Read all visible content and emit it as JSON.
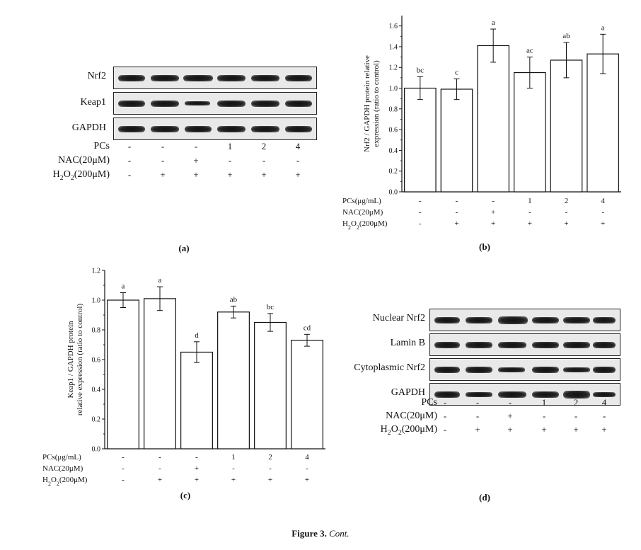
{
  "panel_a": {
    "caption": "(a)",
    "blots": [
      "Nrf2",
      "Keap1",
      "GAPDH"
    ],
    "treatments": [
      {
        "label": "PCs",
        "values": [
          "-",
          "-",
          "-",
          "1",
          "2",
          "4"
        ]
      },
      {
        "label": "NAC(20μM)",
        "values": [
          "-",
          "-",
          "+",
          "-",
          "-",
          "-"
        ]
      },
      {
        "label": "H2O2(200μM)",
        "values": [
          "-",
          "+",
          "+",
          "+",
          "+",
          "+"
        ]
      }
    ]
  },
  "panel_d": {
    "caption": "(d)",
    "blots": [
      "Nuclear Nrf2",
      "Lamin B",
      "Cytoplasmic Nrf2",
      "GAPDH"
    ],
    "treatments": [
      {
        "label": "PCs",
        "values": [
          "-",
          "-",
          "-",
          "1",
          "2",
          "4"
        ]
      },
      {
        "label": "NAC(20μM)",
        "values": [
          "-",
          "-",
          "+",
          "-",
          "-",
          "-"
        ]
      },
      {
        "label": "H2O2(200μM)",
        "values": [
          "-",
          "+",
          "+",
          "+",
          "+",
          "+"
        ]
      }
    ]
  },
  "chart_data": [
    {
      "type": "bar",
      "caption": "(b)",
      "ylabel": "Nrf2 / GAPDH protein relative expression (ratio to control)",
      "ylim": [
        0,
        1.7
      ],
      "yticks": [
        "0.0",
        "0.2",
        "0.4",
        "0.6",
        "0.8",
        "1.0",
        "1.2",
        "1.4",
        "1.6"
      ],
      "values": [
        1.0,
        0.99,
        1.41,
        1.15,
        1.27,
        1.33
      ],
      "errors": [
        0.11,
        0.1,
        0.16,
        0.15,
        0.17,
        0.19
      ],
      "letters": [
        "bc",
        "c",
        "a",
        "ac",
        "ab",
        "a"
      ],
      "treatments": [
        {
          "label": "PCs(μg/mL)",
          "values": [
            "-",
            "-",
            "-",
            "1",
            "2",
            "4"
          ]
        },
        {
          "label": "NAC(20μM)",
          "values": [
            "-",
            "-",
            "+",
            "-",
            "-",
            "-"
          ]
        },
        {
          "label": "H2O2(200μM)",
          "values": [
            "-",
            "+",
            "+",
            "+",
            "+",
            "+"
          ]
        }
      ]
    },
    {
      "type": "bar",
      "caption": "(c)",
      "ylabel": "Keap1 / GAPDH protein relative expression (ratio to control)",
      "ylim": [
        0,
        1.2
      ],
      "yticks": [
        "0.0",
        "0.2",
        "0.4",
        "0.6",
        "0.8",
        "1.0",
        "1.2"
      ],
      "values": [
        1.0,
        1.01,
        0.65,
        0.92,
        0.85,
        0.73
      ],
      "errors": [
        0.05,
        0.08,
        0.07,
        0.04,
        0.06,
        0.04
      ],
      "letters": [
        "a",
        "a",
        "d",
        "ab",
        "bc",
        "cd"
      ],
      "treatments": [
        {
          "label": "PCs(μg/mL)",
          "values": [
            "-",
            "-",
            "-",
            "1",
            "2",
            "4"
          ]
        },
        {
          "label": "NAC(20μM)",
          "values": [
            "-",
            "-",
            "+",
            "-",
            "-",
            "-"
          ]
        },
        {
          "label": "H2O2(200μM)",
          "values": [
            "-",
            "+",
            "+",
            "+",
            "+",
            "+"
          ]
        }
      ]
    }
  ],
  "figure_caption": {
    "label": "Figure 3.",
    "cont": "Cont."
  }
}
